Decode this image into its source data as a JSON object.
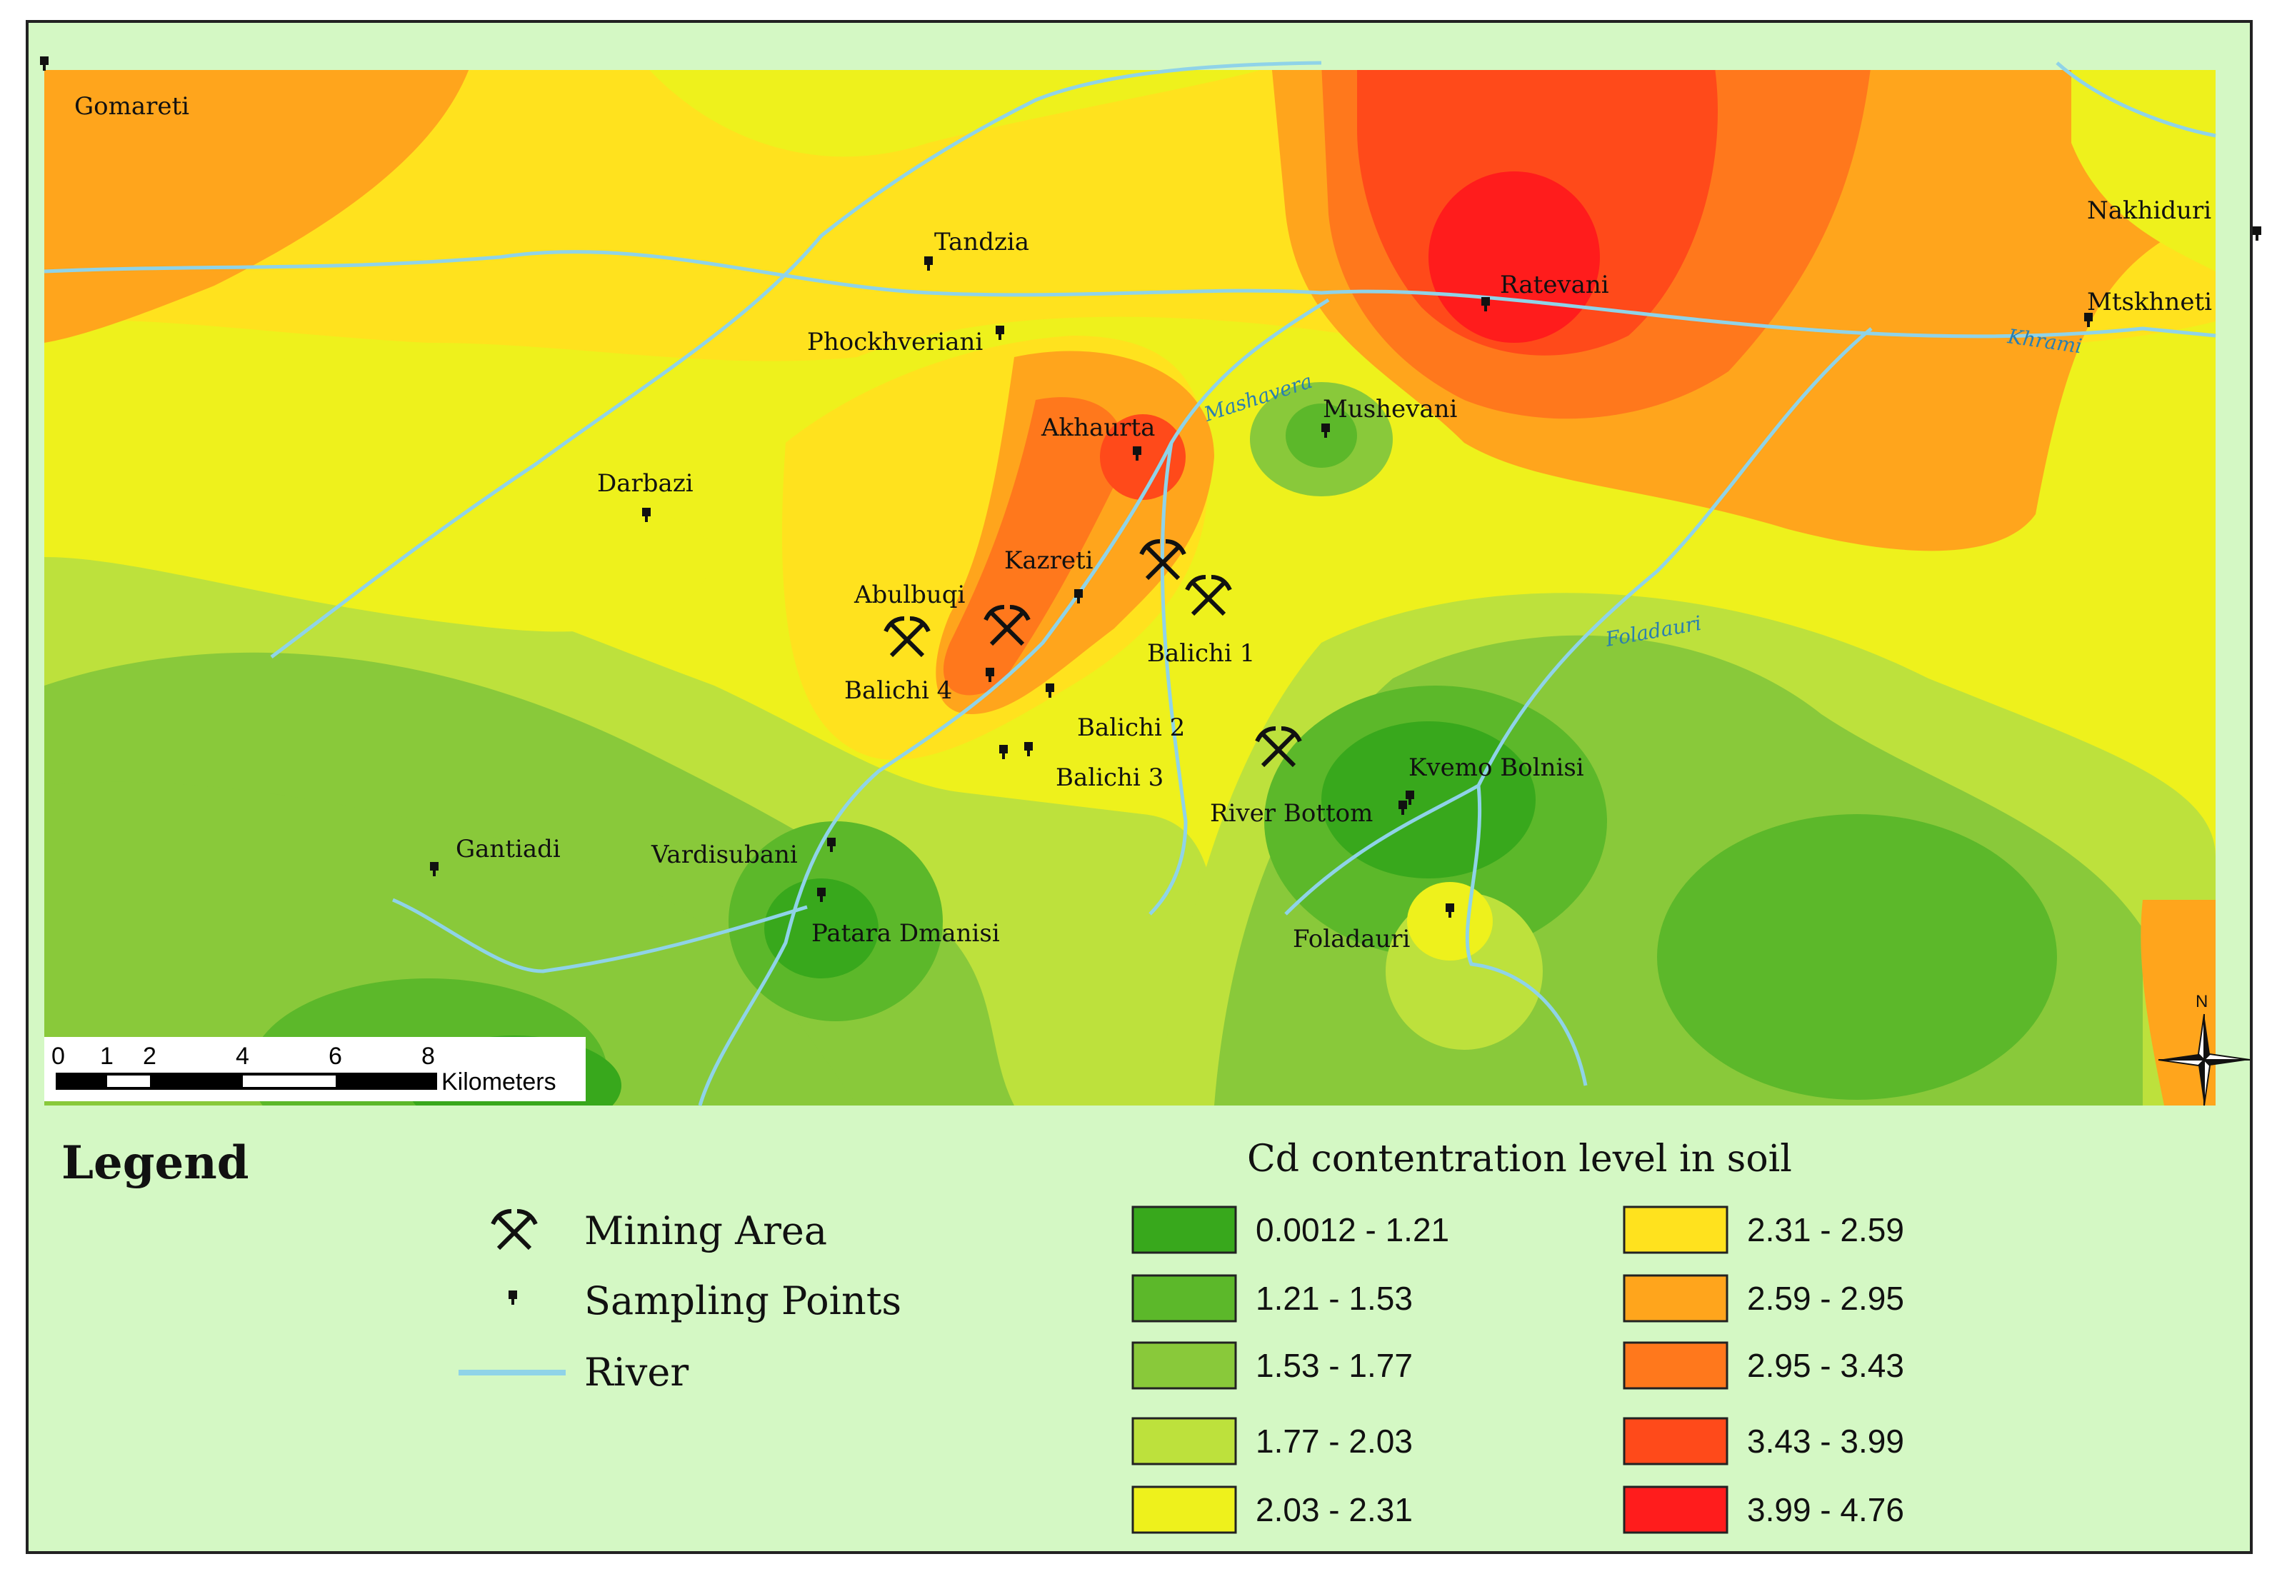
{
  "map": {
    "towns": [
      {
        "id": "gomareti",
        "label": "Gomareti"
      },
      {
        "id": "tandzia",
        "label": "Tandzia"
      },
      {
        "id": "phockhveriani",
        "label": "Phockhveriani"
      },
      {
        "id": "ratevani",
        "label": "Ratevani"
      },
      {
        "id": "nakhiduri",
        "label": "Nakhiduri"
      },
      {
        "id": "mtskhneti",
        "label": "Mtskhneti"
      },
      {
        "id": "akhaurta",
        "label": "Akhaurta"
      },
      {
        "id": "mushevani",
        "label": "Mushevani"
      },
      {
        "id": "darbazi",
        "label": "Darbazi"
      },
      {
        "id": "kazreti",
        "label": "Kazreti"
      },
      {
        "id": "abulbuqi",
        "label": "Abulbuqi"
      },
      {
        "id": "balichi1",
        "label": "Balichi 1"
      },
      {
        "id": "balichi4",
        "label": "Balichi 4"
      },
      {
        "id": "balichi2",
        "label": "Balichi 2"
      },
      {
        "id": "balichi3",
        "label": "Balichi 3"
      },
      {
        "id": "kvemo-bolnisi",
        "label": "Kvemo Bolnisi"
      },
      {
        "id": "river-bottom",
        "label": "River Bottom"
      },
      {
        "id": "gantiadi",
        "label": "Gantiadi"
      },
      {
        "id": "vardisubani",
        "label": "Vardisubani"
      },
      {
        "id": "patara-dmanisi",
        "label": "Patara Dmanisi"
      },
      {
        "id": "foladauri",
        "label": "Foladauri"
      }
    ],
    "rivers": {
      "mashavera": "Mashavera",
      "khrami": "Khrami",
      "foladauri": "Foladauri"
    },
    "scale": {
      "ticks": [
        "0",
        "1",
        "2",
        "4",
        "6",
        "8"
      ],
      "unit": "Kilometers"
    },
    "north_label": "N"
  },
  "legend": {
    "title": "Legend",
    "mining_area": "Mining Area",
    "sampling_points": "Sampling Points",
    "river": "River",
    "cd_title": "Cd contentration level in soil",
    "classes": [
      {
        "range": "0.0012 - 1.21",
        "color": "#38a81c"
      },
      {
        "range": "1.21 - 1.53",
        "color": "#5cb82a"
      },
      {
        "range": "1.53 - 1.77",
        "color": "#89c93a"
      },
      {
        "range": "1.77 - 2.03",
        "color": "#bde13c"
      },
      {
        "range": "2.03 - 2.31",
        "color": "#eef11c"
      },
      {
        "range": "2.31 - 2.59",
        "color": "#ffe21e"
      },
      {
        "range": "2.59 - 2.95",
        "color": "#ffa51c"
      },
      {
        "range": "2.95 - 3.43",
        "color": "#ff781c"
      },
      {
        "range": "3.43 - 3.99",
        "color": "#ff4a1a"
      },
      {
        "range": "3.99 - 4.76",
        "color": "#ff1c1c"
      }
    ],
    "river_color": "#8fd3e8"
  }
}
